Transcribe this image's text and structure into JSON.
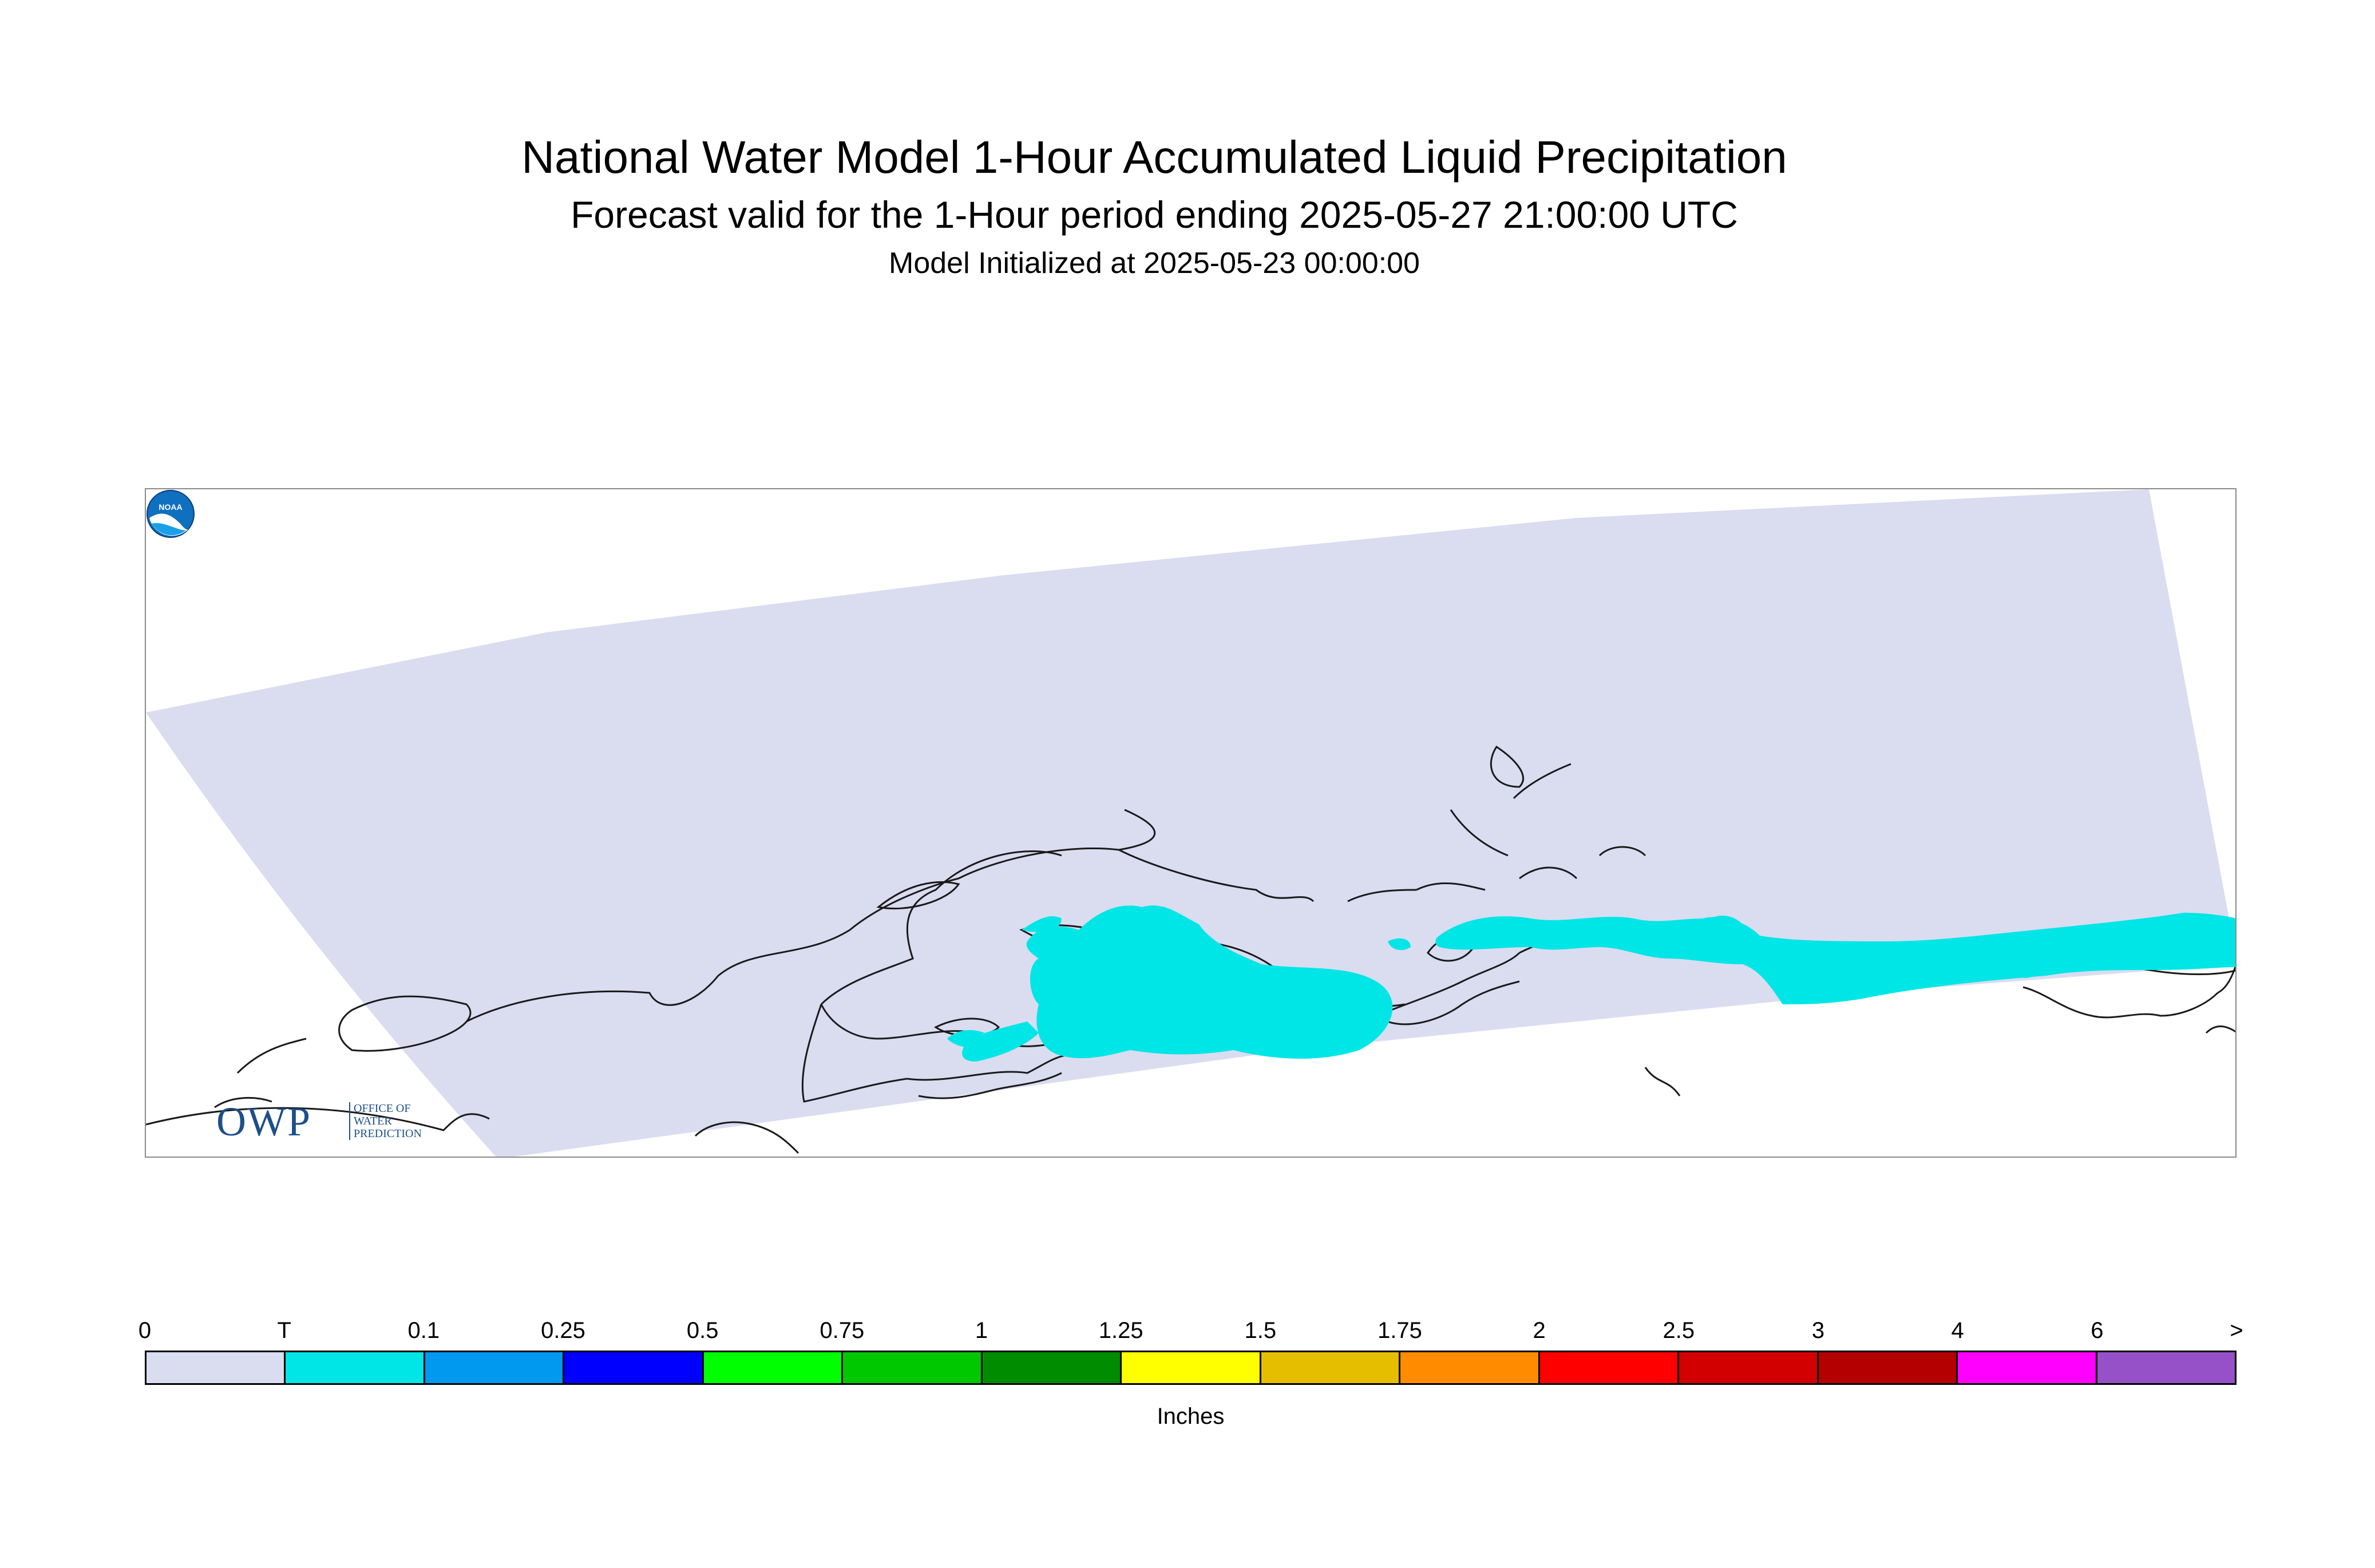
{
  "titles": {
    "main": "National Water Model 1-Hour Accumulated Liquid Precipitation",
    "sub": "Forecast valid for the 1-Hour period ending 2025-05-27 21:00:00 UTC",
    "init": "Model Initialized at 2025-05-23 00:00:00"
  },
  "map": {
    "domain_fill_color": "#dadcf0",
    "precip_fill_color": "#00e6e6",
    "coastline_color": "#1a1a1a"
  },
  "logos": {
    "owp": {
      "letters": "OWP",
      "line1": "OFFICE OF",
      "line2": "WATER",
      "line3": "PREDICTION",
      "icon": "owp-logo"
    },
    "noaa": {
      "text": "NOAA",
      "icon": "noaa-logo"
    }
  },
  "legend": {
    "units": "Inches",
    "tick_labels": [
      "0",
      "T",
      "0.1",
      "0.25",
      "0.5",
      "0.75",
      "1",
      "1.25",
      "1.5",
      "1.75",
      "2",
      "2.5",
      "3",
      "4",
      "6",
      ">"
    ],
    "colors": [
      "#dadcf0",
      "#00e6e6",
      "#0099f0",
      "#0000ff",
      "#00ff00",
      "#00c800",
      "#008c00",
      "#ffff00",
      "#e6be00",
      "#ff8c00",
      "#ff0000",
      "#d20000",
      "#b40000",
      "#ff00ff",
      "#9650c8"
    ]
  }
}
